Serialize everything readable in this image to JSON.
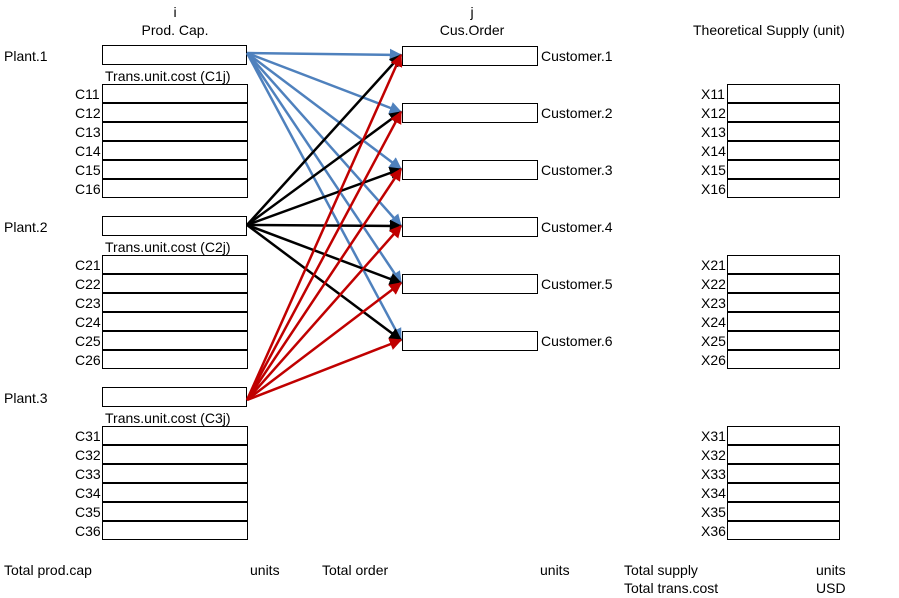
{
  "headers": {
    "i_label": "i",
    "prod_cap": "Prod. Cap.",
    "j_label": "j",
    "cus_order": "Cus.Order",
    "theoretical_supply": "Theoretical Supply (unit)"
  },
  "plants": [
    {
      "name": "Plant.1",
      "trans_label": "Trans.unit.cost (C1j)",
      "cost_labels": [
        "C11",
        "C12",
        "C13",
        "C14",
        "C15",
        "C16"
      ],
      "supply_labels": [
        "X11",
        "X12",
        "X13",
        "X14",
        "X15",
        "X16"
      ],
      "capacity": ""
    },
    {
      "name": "Plant.2",
      "trans_label": "Trans.unit.cost (C2j)",
      "cost_labels": [
        "C21",
        "C22",
        "C23",
        "C24",
        "C25",
        "C26"
      ],
      "supply_labels": [
        "X21",
        "X22",
        "X23",
        "X24",
        "X25",
        "X26"
      ],
      "capacity": ""
    },
    {
      "name": "Plant.3",
      "trans_label": "Trans.unit.cost (C3j)",
      "cost_labels": [
        "C31",
        "C32",
        "C33",
        "C34",
        "C35",
        "C36"
      ],
      "supply_labels": [
        "X31",
        "X32",
        "X33",
        "X34",
        "X35",
        "X36"
      ],
      "capacity": ""
    }
  ],
  "customers": [
    "Customer.1",
    "Customer.2",
    "Customer.3",
    "Customer.4",
    "Customer.5",
    "Customer.6"
  ],
  "totals": {
    "total_prod_cap": "Total prod.cap",
    "units_1": "units",
    "total_order": "Total order",
    "units_2": "units",
    "total_supply": "Total supply",
    "units_3": "units",
    "total_trans_cost": "Total trans.cost",
    "usd": "USD"
  },
  "colors": {
    "plant1_arrows": "#4f81bd",
    "plant2_arrows": "#000000",
    "plant3_arrows": "#c00000"
  }
}
